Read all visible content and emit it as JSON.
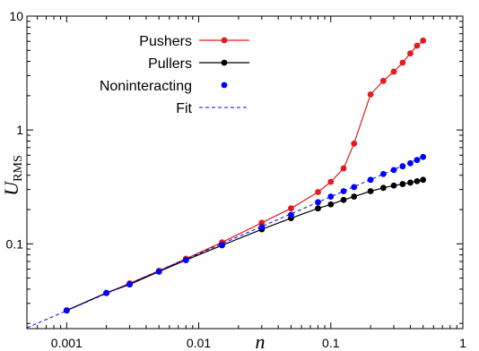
{
  "chart_data": {
    "type": "line",
    "xlabel": "n",
    "ylabel_main": "U",
    "ylabel_sub": "RMS",
    "xscale": "log",
    "yscale": "log",
    "xlim": [
      0.0005,
      1
    ],
    "ylim": [
      0.018,
      10
    ],
    "grid": false,
    "legend_position": "top-left",
    "x_ticks": [
      {
        "value": 0.001,
        "label": "0.001"
      },
      {
        "value": 0.01,
        "label": "0.01"
      },
      {
        "value": 0.1,
        "label": "0.1"
      },
      {
        "value": 1,
        "label": "1"
      }
    ],
    "y_ticks": [
      {
        "value": 0.1,
        "label": "0.1"
      },
      {
        "value": 1,
        "label": "1"
      },
      {
        "value": 10,
        "label": "10"
      }
    ],
    "series": [
      {
        "name": "Pushers",
        "color": "#e41a1c",
        "style": "line-markers",
        "x": [
          0.001,
          0.002,
          0.003,
          0.005,
          0.008,
          0.015,
          0.03,
          0.05,
          0.08,
          0.1,
          0.125,
          0.15,
          0.2,
          0.25,
          0.3,
          0.35,
          0.4,
          0.45,
          0.5
        ],
        "y": [
          0.026,
          0.037,
          0.045,
          0.058,
          0.074,
          0.103,
          0.153,
          0.205,
          0.285,
          0.35,
          0.46,
          0.76,
          2.05,
          2.7,
          3.25,
          3.9,
          4.7,
          5.5,
          6.1
        ]
      },
      {
        "name": "Pullers",
        "color": "#000000",
        "style": "line-markers",
        "x": [
          0.001,
          0.002,
          0.003,
          0.005,
          0.008,
          0.015,
          0.03,
          0.05,
          0.08,
          0.1,
          0.125,
          0.15,
          0.2,
          0.25,
          0.3,
          0.35,
          0.4,
          0.45,
          0.5
        ],
        "y": [
          0.026,
          0.037,
          0.044,
          0.057,
          0.072,
          0.097,
          0.134,
          0.168,
          0.205,
          0.222,
          0.243,
          0.26,
          0.29,
          0.31,
          0.325,
          0.335,
          0.345,
          0.355,
          0.365
        ]
      },
      {
        "name": "Noninteracting",
        "color": "#0000ff",
        "style": "markers",
        "x": [
          0.001,
          0.002,
          0.003,
          0.005,
          0.008,
          0.015,
          0.03,
          0.05,
          0.08,
          0.1,
          0.125,
          0.15,
          0.2,
          0.25,
          0.3,
          0.35,
          0.4,
          0.45,
          0.5
        ],
        "y": [
          0.026,
          0.037,
          0.044,
          0.057,
          0.072,
          0.098,
          0.14,
          0.18,
          0.232,
          0.26,
          0.29,
          0.315,
          0.365,
          0.41,
          0.445,
          0.48,
          0.51,
          0.545,
          0.58
        ]
      },
      {
        "name": "Fit",
        "color": "#0000ff",
        "style": "dashed",
        "x": [
          0.0005,
          0.5
        ],
        "y": [
          0.0183,
          0.58
        ]
      }
    ]
  }
}
